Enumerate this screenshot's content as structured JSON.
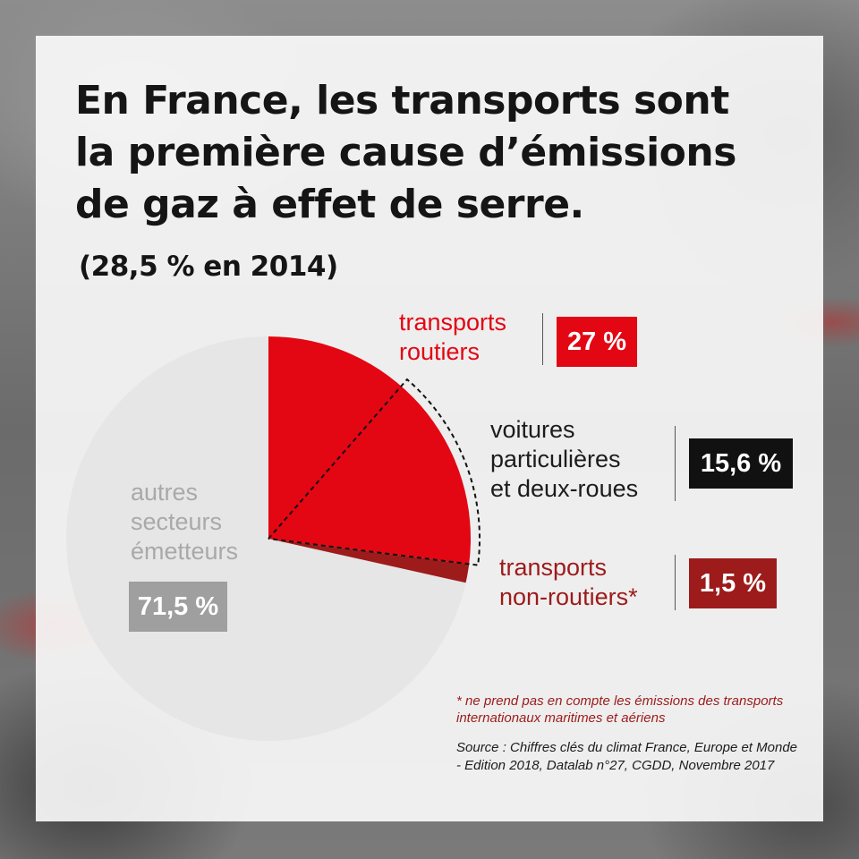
{
  "colors": {
    "road": "#e30613",
    "cars": "#111111",
    "nonroad": "#9d1b1b",
    "others": "#e6e6e6",
    "others_badge": "#9f9f9f"
  },
  "chart_data": {
    "type": "pie",
    "title": "En France, les transports sont la première cause d’émissions de gaz à effet de serre.",
    "subtitle": "(28,5 % en 2014)",
    "slices": [
      {
        "label": "transports routiers",
        "value": 27,
        "display": "27 %",
        "color": "#e30613"
      },
      {
        "label": "transports non-routiers*",
        "value": 1.5,
        "display": "1,5 %",
        "color": "#9d1b1b"
      },
      {
        "label": "autres secteurs émetteurs",
        "value": 71.5,
        "display": "71,5 %",
        "color": "#e6e6e6"
      }
    ],
    "sub_segment": {
      "label": "voitures particulières et deux-roues",
      "value": 15.6,
      "display": "15,6 %",
      "of": "transports routiers"
    }
  },
  "labels": {
    "roads_line1": "transports",
    "roads_line2": "routiers",
    "cars_line1": "voitures",
    "cars_line2": "particulières",
    "cars_line3": "et deux-roues",
    "nonroad_line1": "transports",
    "nonroad_line2": "non-routiers*",
    "others_line1": "autres",
    "others_line2": "secteurs",
    "others_line3": "émetteurs"
  },
  "footnote": "* ne prend pas en compte les émissions des transports internationaux maritimes et aériens",
  "source": "Source : Chiffres clés du climat France, Europe et Monde - Edition 2018, Datalab n°27, CGDD, Novembre 2017"
}
